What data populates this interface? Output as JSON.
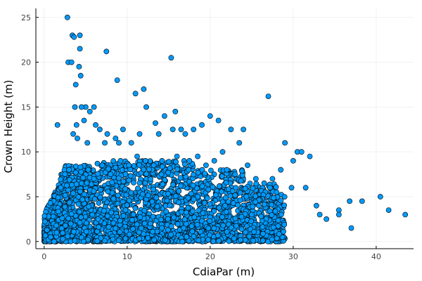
{
  "chart_data": {
    "type": "scatter",
    "title": "",
    "xlabel": "CdiaPar (m)",
    "ylabel": "Crown Height (m)",
    "xlim": [
      -1,
      44.5
    ],
    "ylim": [
      -0.8,
      26
    ],
    "xticks": [
      0,
      10,
      20,
      30,
      40
    ],
    "yticks": [
      0,
      5,
      10,
      15,
      20,
      25
    ],
    "grid": true,
    "legend": "none",
    "colors": {
      "marker": "#009af9",
      "marker_edge": "#000000"
    },
    "series": [
      {
        "x": [
          2.8,
          3.4,
          3.6,
          4.3,
          4.2,
          2.9,
          3.3,
          4.3,
          7.5,
          3.8,
          4.4,
          5.0,
          15.3,
          4.5,
          3.7,
          3.9,
          6.0,
          5.5,
          12.0,
          11.0,
          8.8,
          12.3,
          15.8,
          14.5,
          13.4,
          6.2,
          4.8,
          1.6,
          3.5,
          4.0,
          5.2,
          6.7,
          7.3,
          7.6,
          8.6,
          9.0,
          9.5,
          10.5,
          11.5,
          13.8,
          15.5,
          16.5,
          17.0,
          18.0,
          19.0,
          21.0,
          22.5,
          24.0,
          23.5,
          20.0,
          21.5,
          27.0,
          29.0,
          30.5,
          31.0,
          32.0,
          30.0,
          28.5,
          27.5,
          29.8,
          31.5,
          32.8,
          33.2,
          34.0,
          35.5,
          36.8,
          38.3,
          40.5,
          41.5,
          43.5,
          37.0,
          35.5,
          1.5,
          2.0,
          2.5,
          3.0,
          4.5,
          5.3,
          6.0,
          7.0,
          8.0,
          9.2,
          10.2,
          11.2,
          12.2,
          13.2,
          14.2,
          16.0,
          17.5,
          18.5,
          19.5,
          20.5,
          22.0,
          23.0,
          24.5,
          25.5,
          26.5,
          27.2,
          28.0,
          0.5,
          0.8,
          1.2,
          3.2,
          5.8,
          6.5,
          9.8,
          12.8,
          16.8,
          21.8,
          25.0
        ],
        "y": [
          25.0,
          23.0,
          22.8,
          23.0,
          19.5,
          20.0,
          20.0,
          21.5,
          21.2,
          17.5,
          18.5,
          15.0,
          20.5,
          15.0,
          15.0,
          13.0,
          15.0,
          14.5,
          17.0,
          16.5,
          18.0,
          15.0,
          14.5,
          14.0,
          13.2,
          13.0,
          13.5,
          13.0,
          12.0,
          11.5,
          11.0,
          12.5,
          11.0,
          12.0,
          11.5,
          11.0,
          12.5,
          11.0,
          12.0,
          12.0,
          12.5,
          12.5,
          12.0,
          12.5,
          13.0,
          13.5,
          12.5,
          12.5,
          11.0,
          14.0,
          10.0,
          16.2,
          11.0,
          10.0,
          10.0,
          9.5,
          9.0,
          8.0,
          7.0,
          6.0,
          6.0,
          4.0,
          3.0,
          2.5,
          3.5,
          4.5,
          4.5,
          5.0,
          3.5,
          3.0,
          1.5,
          3.0,
          1.0,
          6.0,
          7.5,
          8.0,
          6.5,
          8.0,
          7.0,
          8.5,
          7.5,
          9.0,
          8.5,
          9.5,
          9.0,
          8.5,
          9.0,
          9.5,
          9.0,
          9.5,
          8.5,
          9.0,
          8.0,
          7.5,
          8.5,
          7.0,
          6.5,
          6.0,
          5.5,
          0.2,
          0.5,
          0.0,
          2.0,
          3.0,
          2.5,
          3.5,
          2.0,
          1.5,
          4.0,
          3.0
        ]
      }
    ]
  }
}
